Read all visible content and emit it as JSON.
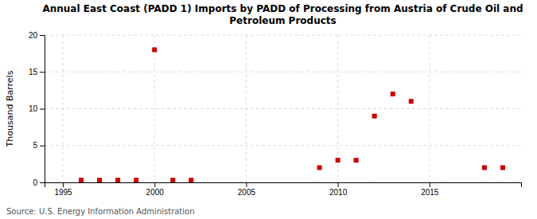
{
  "chart_data": {
    "type": "scatter",
    "title": "Annual East Coast (PADD 1) Imports by PADD of Processing from Austria of Crude Oil and\nPetroleum Products",
    "ylabel": "Thousand Barrels",
    "annotations": [
      "Source: U.S. Energy Information Administration"
    ],
    "x": [
      1996,
      1997,
      1998,
      1999,
      2000,
      2001,
      2002,
      2009,
      2010,
      2011,
      2012,
      2013,
      2014,
      2018,
      2019
    ],
    "values": [
      0.3,
      0.3,
      0.3,
      0.3,
      18.0,
      0.3,
      0.3,
      2.0,
      3.0,
      3.0,
      9.0,
      12.0,
      11.0,
      2.0,
      2.0
    ],
    "color": "#cc0000",
    "marker": "square",
    "xlim": [
      1994,
      2020
    ],
    "ylim": [
      0,
      20
    ],
    "xticks": [
      1995,
      2000,
      2005,
      2010,
      2015
    ],
    "yticks": [
      0,
      5,
      10,
      15,
      20
    ],
    "grid": true
  }
}
